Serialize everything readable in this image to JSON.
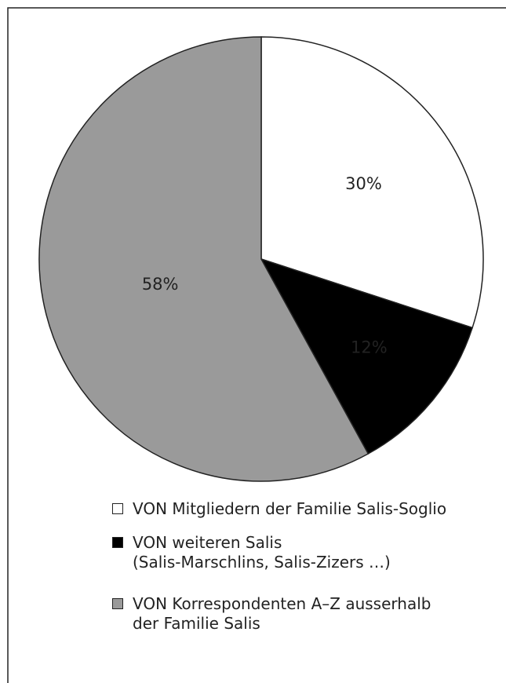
{
  "chart_data": {
    "type": "pie",
    "categories": [
      "VON Mitgliedern der Familie Salis-Soglio",
      "VON weiteren Salis\n(Salis-Marschlins, Salis-Zizers …)",
      "VON Korrespondenten A–Z ausserhalb\nder Familie Salis"
    ],
    "values": [
      30,
      12,
      58
    ],
    "value_labels": [
      "30%",
      "12%",
      "58%"
    ],
    "colors": [
      "#ffffff",
      "#000000",
      "#9a9a9a"
    ]
  }
}
